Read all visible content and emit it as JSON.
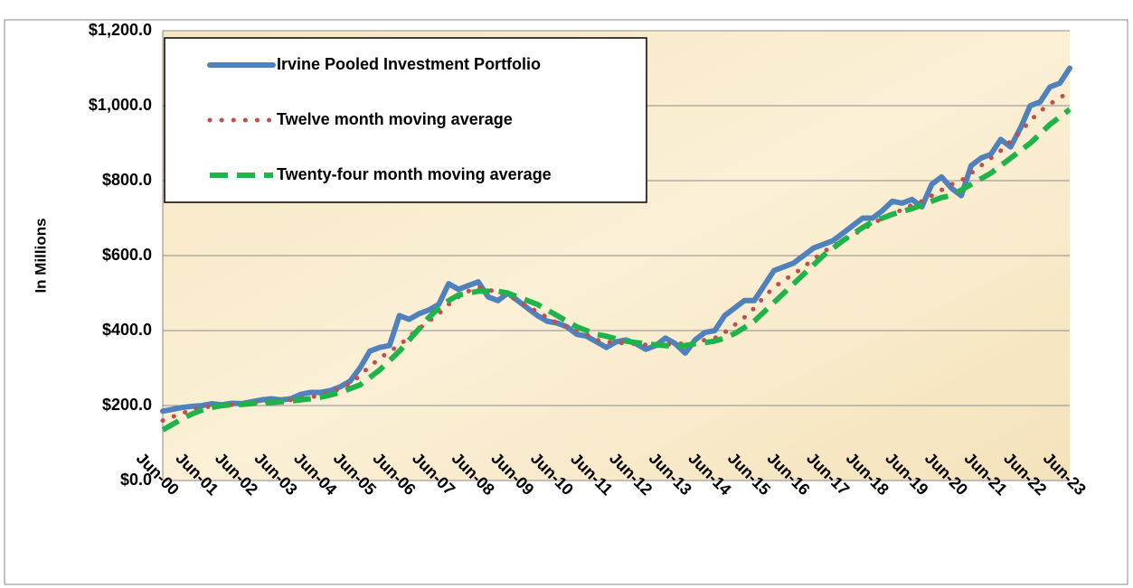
{
  "chart_data": {
    "type": "line",
    "ylabel": "In Millions",
    "categories": [
      "Jun-00",
      null,
      null,
      null,
      "Jun-01",
      null,
      null,
      null,
      "Jun-02",
      null,
      null,
      null,
      "Jun-03",
      null,
      null,
      null,
      "Jun-04",
      null,
      null,
      null,
      "Jun-05",
      null,
      null,
      null,
      "Jun-06",
      null,
      null,
      null,
      "Jun-07",
      null,
      null,
      null,
      "Jun-08",
      null,
      null,
      null,
      "Jun-09",
      null,
      null,
      null,
      "Jun-10",
      null,
      null,
      null,
      "Jun-11",
      null,
      null,
      null,
      "Jun-12",
      null,
      null,
      null,
      "Jun-13",
      null,
      null,
      null,
      "Jun-14",
      null,
      null,
      null,
      "Jun-15",
      null,
      null,
      null,
      "Jun-16",
      null,
      null,
      null,
      "Jun-17",
      null,
      null,
      null,
      "Jun-18",
      null,
      null,
      null,
      "Jun-19",
      null,
      null,
      null,
      "Jun-20",
      null,
      null,
      null,
      "Jun-21",
      null,
      null,
      null,
      "Jun-22",
      null,
      null,
      null,
      "Jun-23"
    ],
    "series": [
      {
        "name": "Irvine Pooled Investment Portfolio",
        "color": "#4f81bd",
        "line_style": "solid",
        "values": [
          185,
          190,
          195,
          198,
          200,
          205,
          202,
          206,
          205,
          210,
          215,
          218,
          215,
          218,
          230,
          235,
          235,
          240,
          250,
          265,
          300,
          345,
          355,
          360,
          440,
          430,
          445,
          455,
          470,
          525,
          510,
          520,
          530,
          490,
          480,
          500,
          480,
          460,
          440,
          425,
          420,
          410,
          390,
          385,
          370,
          355,
          370,
          375,
          365,
          350,
          360,
          380,
          365,
          340,
          375,
          395,
          400,
          440,
          460,
          480,
          480,
          520,
          560,
          570,
          580,
          600,
          620,
          630,
          640,
          660,
          680,
          700,
          700,
          720,
          745,
          740,
          750,
          730,
          790,
          810,
          780,
          760,
          840,
          860,
          870,
          910,
          890,
          940,
          1000,
          1010,
          1050,
          1060,
          1100
        ]
      },
      {
        "name": "Twelve month moving average",
        "color": "#c0504d",
        "line_style": "dotted",
        "values": [
          160,
          170,
          180,
          188,
          195,
          198,
          200,
          202,
          204,
          205,
          208,
          210,
          213,
          215,
          218,
          222,
          228,
          235,
          245,
          258,
          280,
          305,
          325,
          345,
          360,
          385,
          405,
          425,
          445,
          470,
          490,
          505,
          515,
          510,
          500,
          495,
          480,
          465,
          450,
          435,
          420,
          410,
          400,
          390,
          375,
          370,
          368,
          366,
          365,
          362,
          362,
          363,
          365,
          365,
          368,
          375,
          380,
          395,
          415,
          435,
          460,
          490,
          515,
          535,
          550,
          570,
          590,
          610,
          625,
          640,
          655,
          670,
          685,
          700,
          712,
          722,
          735,
          745,
          760,
          775,
          790,
          800,
          820,
          840,
          860,
          880,
          905,
          930,
          960,
          985,
          1005,
          1020,
          1040
        ]
      },
      {
        "name": "Twenty-four month moving average",
        "color": "#1fb34a",
        "line_style": "dashed",
        "values": [
          135,
          150,
          165,
          178,
          188,
          195,
          200,
          202,
          203,
          205,
          207,
          208,
          210,
          212,
          215,
          218,
          222,
          228,
          235,
          245,
          255,
          275,
          295,
          320,
          345,
          375,
          405,
          435,
          460,
          480,
          495,
          500,
          505,
          505,
          505,
          500,
          490,
          480,
          470,
          455,
          440,
          425,
          410,
          400,
          390,
          385,
          378,
          372,
          368,
          365,
          362,
          360,
          358,
          360,
          365,
          368,
          372,
          380,
          392,
          408,
          425,
          450,
          475,
          500,
          525,
          550,
          575,
          600,
          620,
          640,
          658,
          675,
          690,
          700,
          710,
          718,
          725,
          735,
          745,
          755,
          760,
          775,
          790,
          805,
          820,
          840,
          860,
          880,
          900,
          925,
          950,
          970,
          990
        ]
      }
    ],
    "ylim": [
      0,
      1200
    ],
    "yticks": [
      {
        "value": 0,
        "label": "$0.0"
      },
      {
        "value": 200,
        "label": "$200.0"
      },
      {
        "value": 400,
        "label": "$400.0"
      },
      {
        "value": 600,
        "label": "$600.0"
      },
      {
        "value": 800,
        "label": "$800.0"
      },
      {
        "value": 1000,
        "label": "$1,000.0"
      },
      {
        "value": 1200,
        "label": "$1,200.0"
      }
    ],
    "grid": true,
    "legend": "upper left"
  }
}
